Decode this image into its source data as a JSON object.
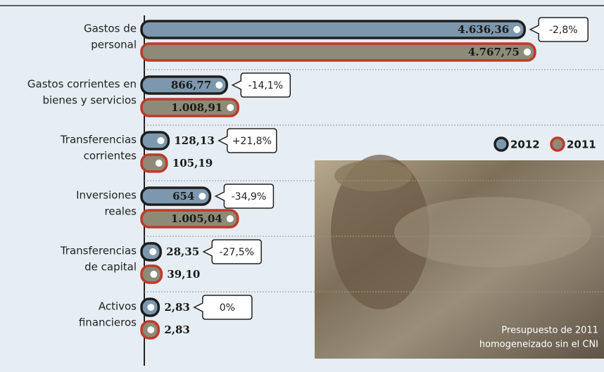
{
  "chart_data": {
    "type": "bar",
    "orientation": "horizontal",
    "categories": [
      [
        "Gastos de",
        "personal"
      ],
      [
        "Gastos corrientes en",
        "bienes y servicios"
      ],
      [
        "Transferencias",
        "corrientes"
      ],
      [
        "Inversiones",
        "reales"
      ],
      [
        "Transferencias",
        "de capital"
      ],
      [
        "Activos",
        "financieros"
      ]
    ],
    "series": [
      {
        "name": "2012",
        "color": "#7d98ae",
        "outline": "#1e1e1e",
        "values": [
          4636.36,
          866.77,
          128.13,
          654,
          28.35,
          2.83
        ],
        "value_labels": [
          "4.636,36",
          "866,77",
          "128,13",
          "654",
          "28,35",
          "2,83"
        ]
      },
      {
        "name": "2011",
        "color": "#8d8b77",
        "outline": "#c0392b",
        "values": [
          4767.75,
          1008.91,
          105.19,
          1005.04,
          39.1,
          2.83
        ],
        "value_labels": [
          "4.767,75",
          "1.008,91",
          "105,19",
          "1.005,04",
          "39,10",
          "2,83"
        ]
      }
    ],
    "annotations": [
      "-2,8%",
      "-14,1%",
      "+21,8%",
      "-34,9%",
      "-27,5%",
      "0%"
    ],
    "photo_caption": [
      "Presupuesto de 2011",
      "homogeneizado sin el CNI"
    ]
  }
}
